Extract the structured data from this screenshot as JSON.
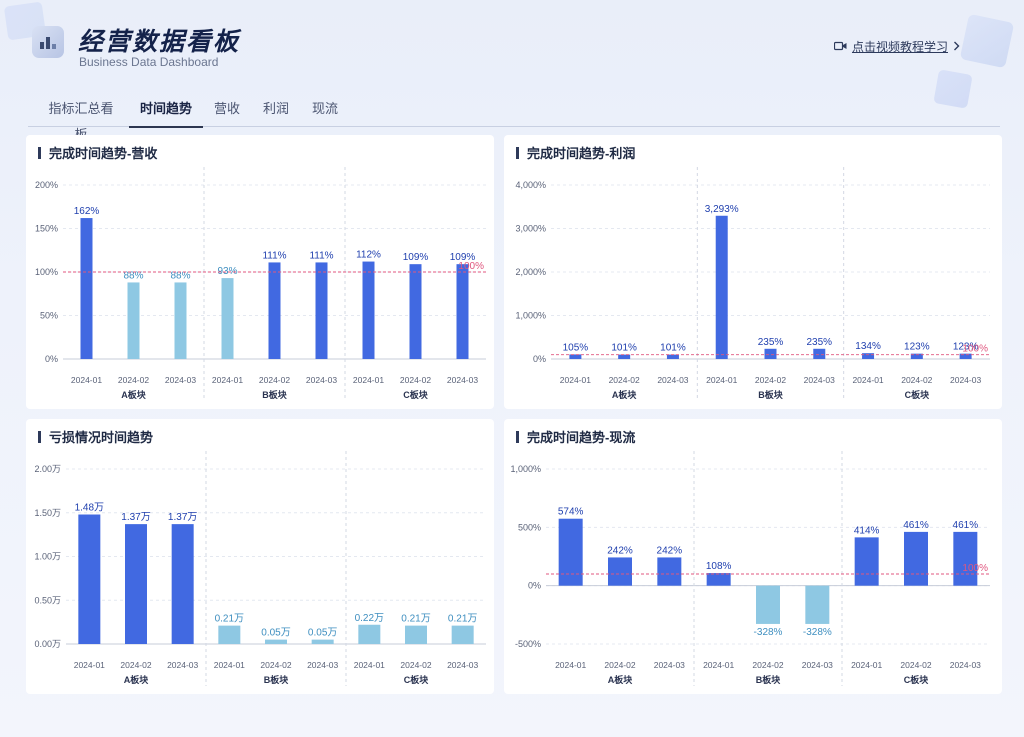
{
  "header": {
    "title": "经营数据看板",
    "subtitle": "Business Data Dashboard",
    "tutorial_link": "点击视频教程学习"
  },
  "tabs": [
    {
      "label": "指标汇总看板",
      "active": false
    },
    {
      "label": "时间趋势",
      "active": true
    },
    {
      "label": "营收",
      "active": false
    },
    {
      "label": "利润",
      "active": false
    },
    {
      "label": "现流",
      "active": false
    }
  ],
  "colors": {
    "bar_high": "#4169e1",
    "bar_low": "#8ec8e3",
    "target_line": "#e0577f",
    "label_high": "#1f3fae",
    "label_low": "#3f8fc0"
  },
  "charts": [
    {
      "title": "完成时间趋势-营收",
      "chart_data": {
        "type": "bar",
        "groups": [
          "A板块",
          "B板块",
          "C板块"
        ],
        "categories": [
          "2024-01",
          "2024-02",
          "2024-03",
          "2024-01",
          "2024-02",
          "2024-03",
          "2024-01",
          "2024-02",
          "2024-03"
        ],
        "values": [
          162,
          88,
          88,
          93,
          111,
          111,
          112,
          109,
          109
        ],
        "labels": [
          "162%",
          "88%",
          "88%",
          "93%",
          "111%",
          "111%",
          "112%",
          "109%",
          "109%"
        ],
        "yticks": [
          0,
          50,
          100,
          150,
          200
        ],
        "ytick_labels": [
          "0%",
          "50%",
          "100%",
          "150%",
          "200%"
        ],
        "ylim": [
          0,
          200
        ],
        "reference": {
          "value": 100,
          "label": "100%"
        },
        "grid": true
      }
    },
    {
      "title": "完成时间趋势-利润",
      "chart_data": {
        "type": "bar",
        "groups": [
          "A板块",
          "B板块",
          "C板块"
        ],
        "categories": [
          "2024-01",
          "2024-02",
          "2024-03",
          "2024-01",
          "2024-02",
          "2024-03",
          "2024-01",
          "2024-02",
          "2024-03"
        ],
        "values": [
          105,
          101,
          101,
          3293,
          235,
          235,
          134,
          123,
          123
        ],
        "labels": [
          "105%",
          "101%",
          "101%",
          "3,293%",
          "235%",
          "235%",
          "134%",
          "123%",
          "123%"
        ],
        "yticks": [
          0,
          1000,
          2000,
          3000,
          4000
        ],
        "ytick_labels": [
          "0%",
          "1,000%",
          "2,000%",
          "3,000%",
          "4,000%"
        ],
        "ylim": [
          0,
          4000
        ],
        "reference": {
          "value": 100,
          "label": "100%"
        },
        "grid": true
      }
    },
    {
      "title": "亏损情况时间趋势",
      "chart_data": {
        "type": "bar",
        "groups": [
          "A板块",
          "B板块",
          "C板块"
        ],
        "categories": [
          "2024-01",
          "2024-02",
          "2024-03",
          "2024-01",
          "2024-02",
          "2024-03",
          "2024-01",
          "2024-02",
          "2024-03"
        ],
        "values": [
          1.48,
          1.37,
          1.37,
          0.21,
          0.05,
          0.05,
          0.22,
          0.21,
          0.21
        ],
        "labels": [
          "1.48万",
          "1.37万",
          "1.37万",
          "0.21万",
          "0.05万",
          "0.05万",
          "0.22万",
          "0.21万",
          "0.21万"
        ],
        "yticks": [
          0,
          0.5,
          1.0,
          1.5,
          2.0
        ],
        "ytick_labels": [
          "0.00万",
          "0.50万",
          "1.00万",
          "1.50万",
          "2.00万"
        ],
        "ylim": [
          0,
          2.0
        ],
        "reference": null,
        "grid": true
      }
    },
    {
      "title": "完成时间趋势-现流",
      "chart_data": {
        "type": "bar",
        "groups": [
          "A板块",
          "B板块",
          "C板块"
        ],
        "categories": [
          "2024-01",
          "2024-02",
          "2024-03",
          "2024-01",
          "2024-02",
          "2024-03",
          "2024-01",
          "2024-02",
          "2024-03"
        ],
        "values": [
          574,
          242,
          242,
          108,
          -328,
          -328,
          414,
          461,
          461
        ],
        "labels": [
          "574%",
          "242%",
          "242%",
          "108%",
          "-328%",
          "-328%",
          "414%",
          "461%",
          "461%"
        ],
        "yticks": [
          -500,
          0,
          500,
          1000
        ],
        "ytick_labels": [
          "-500%",
          "0%",
          "500%",
          "1,000%"
        ],
        "ylim": [
          -500,
          1000
        ],
        "reference": {
          "value": 100,
          "label": "100%"
        },
        "grid": true
      }
    }
  ]
}
